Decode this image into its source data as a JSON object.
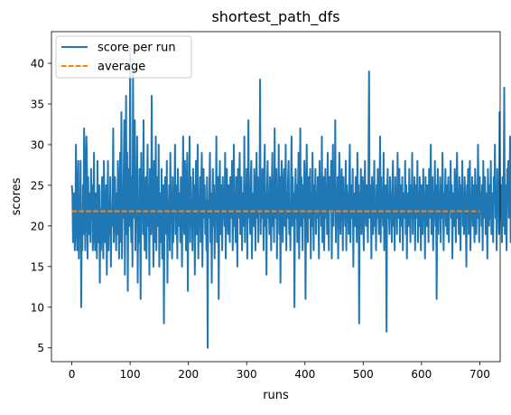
{
  "chart_data": {
    "type": "line",
    "title": "shortest_path_dfs",
    "xlabel": "runs",
    "ylabel": "scores",
    "xlim": [
      -35,
      735
    ],
    "ylim": [
      3.3,
      43.9
    ],
    "xticks": [
      0,
      100,
      200,
      300,
      400,
      500,
      600,
      700
    ],
    "yticks": [
      5,
      10,
      15,
      20,
      25,
      30,
      35,
      40
    ],
    "grid": false,
    "legend_position": "top-left",
    "series": [
      {
        "name": "score per run",
        "color": "#1f77b4",
        "style": "solid",
        "x_start": 0,
        "x_step": 1,
        "values": [
          25,
          24,
          18,
          21,
          24,
          17,
          20,
          30,
          23,
          17,
          24,
          28,
          16,
          23,
          19,
          28,
          10,
          21,
          17,
          25,
          19,
          32,
          28,
          17,
          22,
          31,
          27,
          16,
          26,
          20,
          19,
          24,
          18,
          27,
          21,
          25,
          17,
          21,
          29,
          19,
          17,
          24,
          22,
          16,
          28,
          18,
          21,
          25,
          13,
          22,
          17,
          24,
          26,
          19,
          16,
          28,
          22,
          18,
          21,
          25,
          14,
          22,
          28,
          17,
          23,
          19,
          26,
          15,
          21,
          20,
          24,
          32,
          18,
          21,
          26,
          22,
          17,
          24,
          19,
          28,
          22,
          16,
          25,
          29,
          18,
          34,
          16,
          23,
          21,
          27,
          33,
          14,
          24,
          36,
          19,
          29,
          12,
          25,
          27,
          20,
          42,
          22,
          18,
          26,
          15,
          39,
          21,
          25,
          33,
          17,
          24,
          22,
          31,
          13,
          23,
          18,
          27,
          22,
          11,
          29,
          21,
          25,
          19,
          33,
          22,
          17,
          24,
          26,
          16,
          23,
          30,
          20,
          25,
          14,
          27,
          23,
          19,
          36,
          24,
          21,
          15,
          28,
          23,
          18,
          31,
          17,
          26,
          22,
          20,
          30,
          15,
          22,
          24,
          18,
          27,
          16,
          21,
          25,
          8,
          22,
          26,
          24,
          19,
          28,
          13,
          23,
          20,
          25,
          17,
          29,
          21,
          24,
          16,
          26,
          18,
          23,
          22,
          30,
          19,
          25,
          21,
          16,
          27,
          23,
          20,
          24,
          18,
          26,
          22,
          15,
          24,
          31,
          21,
          19,
          28,
          23,
          17,
          25,
          29,
          12,
          24,
          22,
          31,
          18,
          26,
          20,
          23,
          17,
          27,
          21,
          25,
          14,
          22,
          28,
          19,
          24,
          30,
          16,
          23,
          20,
          26,
          18,
          24,
          29,
          15,
          22,
          27,
          21,
          25,
          19,
          23,
          17,
          26,
          5,
          23,
          21,
          25,
          29,
          18,
          24,
          13,
          22,
          27,
          20,
          25,
          16,
          23,
          21,
          31,
          18,
          24,
          26,
          11,
          22,
          28,
          19,
          23,
          25,
          17,
          26,
          21,
          24,
          20,
          29,
          16,
          23,
          27,
          22,
          19,
          25,
          23,
          18,
          26,
          21,
          24,
          28,
          17,
          22,
          30,
          20,
          24,
          18,
          26,
          23,
          15,
          27,
          21,
          24,
          29,
          19,
          22,
          26,
          17,
          24,
          23,
          20,
          31,
          18,
          25,
          22,
          27,
          16,
          24,
          33,
          21,
          23,
          19,
          26,
          28,
          16,
          24,
          22,
          20,
          27,
          25,
          17,
          23,
          29,
          21,
          26,
          18,
          24,
          22,
          38,
          19,
          25,
          21,
          27,
          23,
          17,
          26,
          30,
          20,
          24,
          14,
          25,
          28,
          21,
          23,
          19,
          26,
          22,
          17,
          24,
          29,
          20,
          25,
          18,
          32,
          21,
          23,
          27,
          16,
          24,
          22,
          30,
          19,
          26,
          13,
          24,
          28,
          22,
          18,
          25,
          27,
          20,
          23,
          30,
          17,
          24,
          21,
          26,
          28,
          19,
          23,
          17,
          25,
          31,
          20,
          26,
          22,
          24,
          10,
          23,
          27,
          21,
          25,
          18,
          24,
          29,
          16,
          22,
          32,
          20,
          26,
          23,
          17,
          25,
          21,
          28,
          24,
          11,
          23,
          30,
          22,
          18,
          26,
          21,
          24,
          27,
          16,
          24,
          20,
          29,
          23,
          17,
          25,
          22,
          27,
          19,
          24,
          21,
          26,
          23,
          16,
          28,
          22,
          25,
          20,
          31,
          18,
          24,
          26,
          17,
          23,
          27,
          21,
          25,
          19,
          29,
          23,
          17,
          26,
          24,
          22,
          28,
          16,
          23,
          30,
          20,
          25,
          22,
          33,
          18,
          24,
          21,
          26,
          16,
          23,
          29,
          22,
          19,
          25,
          27,
          24,
          17,
          26,
          21,
          23,
          20,
          28,
          17,
          25,
          22,
          24,
          19,
          26,
          30,
          18,
          23,
          25,
          21,
          27,
          15,
          24,
          22,
          20,
          26,
          23,
          18,
          29,
          21,
          25,
          8,
          24,
          22,
          27,
          19,
          23,
          26,
          21,
          17,
          24,
          28,
          22,
          20,
          25,
          23,
          18,
          27,
          39,
          21,
          25,
          24,
          16,
          26,
          22,
          19,
          24,
          28,
          20,
          23,
          17,
          25,
          21,
          27,
          22,
          19,
          24,
          31,
          18,
          26,
          21,
          23,
          20,
          29,
          17,
          24,
          25,
          22,
          7,
          24,
          27,
          21,
          23,
          19,
          26,
          22,
          24,
          18,
          25,
          28,
          20,
          23,
          17,
          26,
          22,
          24,
          19,
          29,
          21,
          23,
          27,
          18,
          25,
          22,
          20,
          26,
          17,
          24,
          23,
          21,
          28,
          19,
          25,
          16,
          24,
          22,
          20,
          27,
          23,
          18,
          25,
          21,
          29,
          19,
          24,
          22,
          26,
          17,
          23,
          25,
          21,
          28,
          18,
          24,
          20,
          26,
          22,
          17,
          25,
          23,
          19,
          27,
          21,
          24,
          16,
          26,
          22,
          20,
          25,
          23,
          18,
          27,
          21,
          24,
          30,
          19,
          22,
          26,
          17,
          24,
          21,
          28,
          20,
          25,
          11,
          23,
          27,
          19,
          24,
          22,
          26,
          18,
          25,
          21,
          29,
          23,
          17,
          24,
          22,
          27,
          20,
          25,
          19,
          23,
          26,
          18,
          24,
          22,
          28,
          21,
          25,
          16,
          23,
          24,
          20,
          27,
          22,
          18,
          25,
          29,
          21,
          24,
          19,
          26,
          23,
          17,
          25,
          22,
          28,
          20,
          24,
          19,
          26,
          23,
          21,
          15,
          25,
          22,
          27,
          19,
          24,
          28,
          17,
          23,
          21,
          26,
          20,
          25,
          22,
          18,
          27,
          24,
          19,
          25,
          21,
          30,
          23,
          18,
          26,
          22,
          24,
          20,
          25,
          17,
          28,
          21,
          23,
          26,
          19,
          24,
          22,
          16,
          27,
          23,
          20,
          25,
          21,
          28,
          19,
          24,
          22,
          18,
          26,
          23,
          30,
          21,
          25,
          17,
          27,
          22,
          24,
          19,
          34,
          21,
          25,
          23,
          18,
          26,
          20,
          24,
          37,
          19,
          25,
          22,
          17,
          27,
          23,
          28,
          21,
          24,
          31,
          18,
          26,
          22,
          29,
          16
        ]
      },
      {
        "name": "average",
        "color": "#ff7f0e",
        "style": "dashed",
        "x": [
          0,
          700
        ],
        "values": [
          21.8,
          21.8
        ]
      }
    ]
  }
}
